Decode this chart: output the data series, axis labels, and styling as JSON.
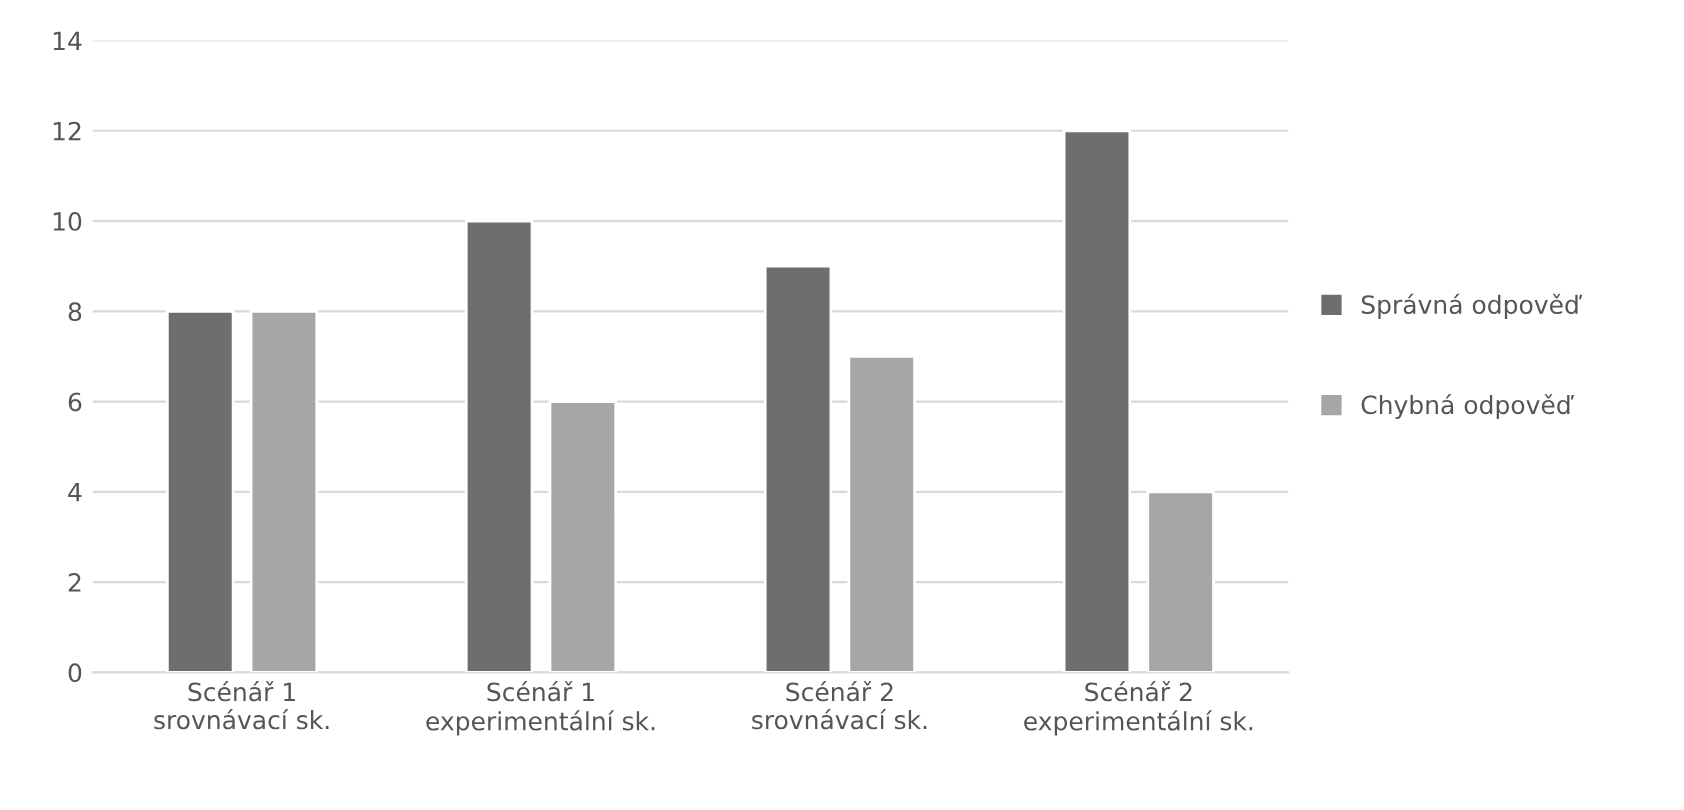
{
  "chart_data": {
    "type": "bar",
    "categories": [
      "Scénář 1\nsrovnávací sk.",
      "Scénář 1\nexperimentální sk.",
      "Scénář 2\nsrovnávací sk.",
      "Scénář 2\nexperimentální sk."
    ],
    "series": [
      {
        "name": "Správná odpověď",
        "color": "#6e6e6e",
        "values": [
          8,
          10,
          9,
          12
        ]
      },
      {
        "name": "Chybná odpověď",
        "color": "#a6a6a6",
        "values": [
          8,
          6,
          7,
          4
        ]
      }
    ],
    "ylim": [
      0,
      14
    ],
    "yticks": [
      0,
      2,
      4,
      6,
      8,
      10,
      12,
      14
    ],
    "grid": "y",
    "legend": "right"
  }
}
